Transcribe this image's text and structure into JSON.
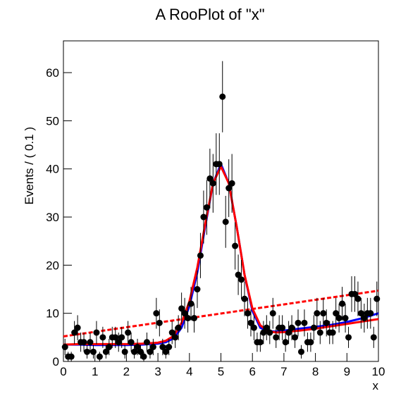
{
  "chart_data": {
    "type": "scatter",
    "title": "A RooPlot of \"x\"",
    "xlabel": "x",
    "ylabel": "Events / ( 0.1 )",
    "xlim": [
      0,
      10
    ],
    "ylim": [
      0,
      66.6
    ],
    "xticks": [
      0,
      1,
      2,
      3,
      4,
      5,
      6,
      7,
      8,
      9,
      10
    ],
    "yticks": [
      0,
      10,
      20,
      30,
      40,
      50,
      60
    ],
    "points": {
      "color": "#000000",
      "x": [
        0.05,
        0.15,
        0.25,
        0.35,
        0.45,
        0.55,
        0.65,
        0.75,
        0.85,
        0.95,
        1.05,
        1.15,
        1.25,
        1.35,
        1.45,
        1.55,
        1.65,
        1.75,
        1.85,
        1.95,
        2.05,
        2.15,
        2.25,
        2.35,
        2.45,
        2.55,
        2.65,
        2.75,
        2.85,
        2.95,
        3.05,
        3.15,
        3.25,
        3.35,
        3.45,
        3.55,
        3.65,
        3.75,
        3.85,
        3.95,
        4.05,
        4.15,
        4.25,
        4.35,
        4.45,
        4.55,
        4.65,
        4.75,
        4.85,
        4.95,
        5.05,
        5.15,
        5.25,
        5.35,
        5.45,
        5.55,
        5.65,
        5.75,
        5.85,
        5.95,
        6.05,
        6.15,
        6.25,
        6.35,
        6.45,
        6.55,
        6.65,
        6.75,
        6.85,
        6.95,
        7.05,
        7.15,
        7.25,
        7.35,
        7.45,
        7.55,
        7.65,
        7.75,
        7.85,
        7.95,
        8.05,
        8.15,
        8.25,
        8.35,
        8.45,
        8.55,
        8.65,
        8.75,
        8.85,
        8.95,
        9.05,
        9.15,
        9.25,
        9.35,
        9.45,
        9.55,
        9.65,
        9.75,
        9.85,
        9.95
      ],
      "values": [
        3,
        1,
        1,
        6,
        7,
        4,
        4,
        2,
        4,
        2,
        6,
        1,
        5,
        2,
        3,
        5,
        5,
        4,
        5,
        2,
        6,
        4,
        2,
        3,
        2,
        1,
        4,
        2,
        3,
        10,
        8,
        3,
        2,
        3,
        6,
        5,
        7,
        11,
        10,
        9,
        12,
        9,
        15,
        22,
        30,
        32,
        38,
        37,
        41,
        41,
        55,
        29,
        36,
        37,
        24,
        18,
        17,
        13,
        10,
        8,
        7,
        4,
        4,
        6,
        7,
        6,
        10,
        5,
        7,
        7,
        4,
        6,
        7,
        5,
        8,
        2,
        8,
        4,
        4,
        7,
        10,
        6,
        10,
        8,
        6,
        6,
        10,
        9,
        12,
        9,
        5,
        14,
        14,
        13,
        10,
        9,
        10,
        10,
        5,
        13
      ],
      "errors": [
        1.7,
        1,
        1,
        2.4,
        2.6,
        2,
        2,
        1.4,
        2,
        1.4,
        2.4,
        1,
        2.2,
        1.4,
        1.7,
        2.2,
        2.2,
        2,
        2.2,
        1.4,
        2.4,
        2,
        1.4,
        1.7,
        1.4,
        1,
        2,
        1.4,
        1.7,
        3.2,
        2.8,
        1.7,
        1.4,
        1.7,
        2.4,
        2.2,
        2.6,
        3.3,
        3.2,
        3,
        3.5,
        3,
        3.9,
        4.7,
        5.5,
        5.7,
        6.2,
        6.1,
        6.4,
        6.4,
        7.4,
        5.4,
        6,
        6.1,
        4.9,
        4.2,
        4.1,
        3.6,
        3.2,
        2.8,
        2.6,
        2,
        2,
        2.4,
        2.6,
        2.4,
        3.2,
        2.2,
        2.6,
        2.6,
        2,
        2.4,
        2.6,
        2.2,
        2.8,
        1.4,
        2.8,
        2,
        2,
        2.6,
        3.2,
        2.4,
        3.2,
        2.8,
        2.4,
        2.4,
        3.2,
        3,
        3.5,
        3,
        2.2,
        3.7,
        3.7,
        3.6,
        3.2,
        3,
        3.2,
        3.2,
        2.2,
        3.6
      ]
    },
    "curves": [
      {
        "color": "#0000ff",
        "dashed": false,
        "x": [
          0,
          0.5,
          1,
          1.5,
          2,
          2.5,
          3,
          3.25,
          3.5,
          3.75,
          4,
          4.25,
          4.5,
          4.75,
          5,
          5.25,
          5.5,
          5.75,
          6,
          6.25,
          6.5,
          6.75,
          7,
          7.5,
          8,
          8.5,
          9,
          9.5,
          10
        ],
        "values": [
          3.5,
          3.5,
          3.4,
          3.4,
          3.4,
          3.5,
          3.7,
          4,
          4.8,
          7,
          11.5,
          18.5,
          28,
          37,
          41,
          37,
          28,
          18,
          10.5,
          7,
          6.3,
          6.2,
          6.4,
          6.8,
          7.2,
          7.6,
          8.2,
          9,
          10
        ]
      },
      {
        "color": "#ff0000",
        "dashed": false,
        "x": [
          0,
          0.5,
          1,
          1.5,
          2,
          2.5,
          3,
          3.25,
          3.5,
          3.75,
          4,
          4.25,
          4.5,
          4.75,
          5,
          5.25,
          5.5,
          5.75,
          6,
          6.25,
          6.5,
          6.75,
          7,
          7.5,
          8,
          8.5,
          9,
          9.5,
          10
        ],
        "values": [
          3.5,
          3.6,
          3.6,
          3.6,
          3.6,
          3.7,
          3.9,
          4.3,
          5.3,
          8,
          12.5,
          19.5,
          28.5,
          37,
          40.5,
          37,
          28,
          18,
          11,
          7.5,
          6.3,
          6,
          6.1,
          6.4,
          6.8,
          7.3,
          7.8,
          8.3,
          8.8
        ]
      },
      {
        "color": "#ff0000",
        "dashed": true,
        "x": [
          0,
          10
        ],
        "values": [
          5.2,
          14.7
        ]
      }
    ]
  }
}
